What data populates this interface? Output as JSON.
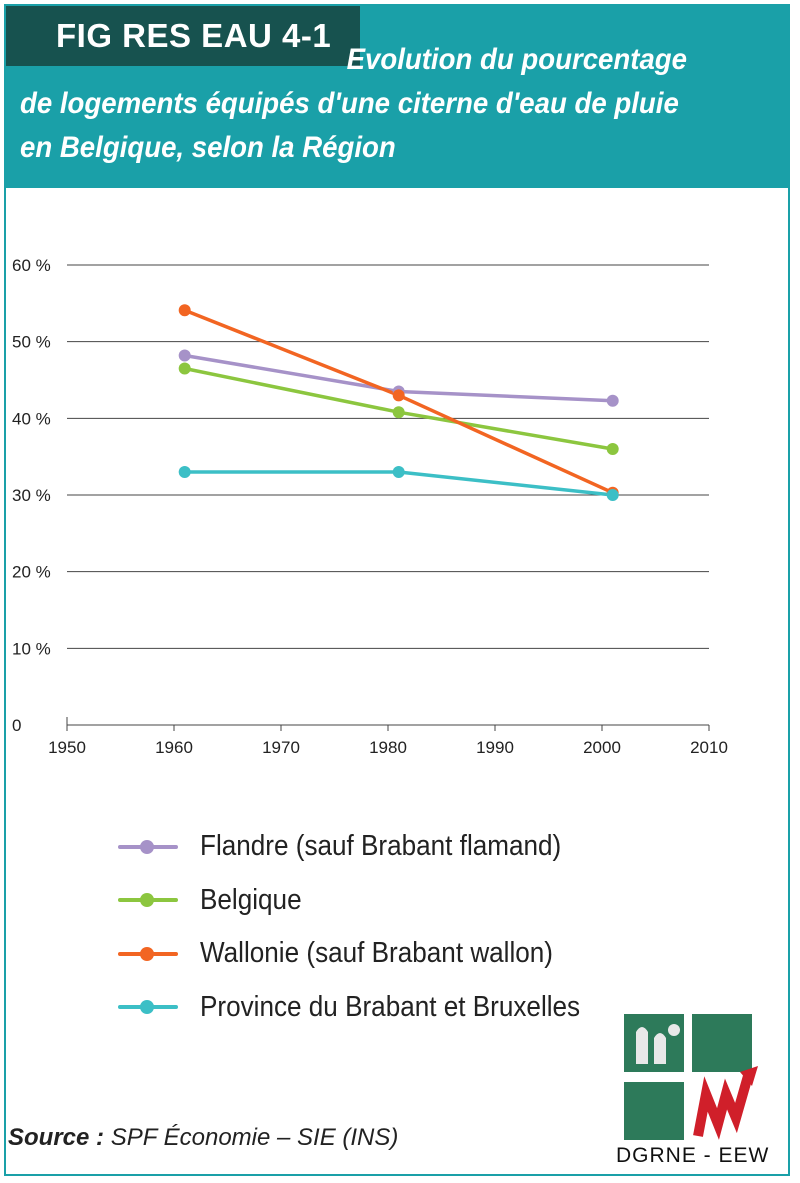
{
  "header": {
    "fig_tag": "FIG RES EAU 4-1",
    "title": "Evolution du pourcentage de logements équipés d'une citerne d'eau de pluie en Belgique, selon la Région"
  },
  "chart_data": {
    "type": "line",
    "x_ticks": [
      1950,
      1960,
      1970,
      1980,
      1990,
      2000,
      2010
    ],
    "y_ticks": [
      "0",
      "10 %",
      "20 %",
      "30 %",
      "40 %",
      "50 %",
      "60 %"
    ],
    "xlim": [
      1950,
      2010
    ],
    "ylim": [
      0,
      60
    ],
    "grid": "horizontal",
    "legend_position": "bottom",
    "series": [
      {
        "name": "Flandre (sauf Brabant flamand)",
        "color": "#a692c8",
        "x": [
          1961,
          1981,
          2001
        ],
        "y": [
          48.2,
          43.5,
          42.3
        ]
      },
      {
        "name": "Belgique",
        "color": "#8cc63f",
        "x": [
          1961,
          1981,
          2001
        ],
        "y": [
          46.5,
          40.8,
          36.0
        ]
      },
      {
        "name": "Wallonie (sauf Brabant wallon)",
        "color": "#f26522",
        "x": [
          1961,
          1981,
          2001
        ],
        "y": [
          54.1,
          43.0,
          30.3
        ]
      },
      {
        "name": "Province du Brabant et Bruxelles",
        "color": "#3cbfc6",
        "x": [
          1961,
          1981,
          2001
        ],
        "y": [
          33.0,
          33.0,
          30.0
        ]
      }
    ]
  },
  "source": {
    "label": "Source :",
    "text": "SPF Économie – SIE (INS)"
  },
  "logo": {
    "label": "DGRNE - EEW"
  }
}
